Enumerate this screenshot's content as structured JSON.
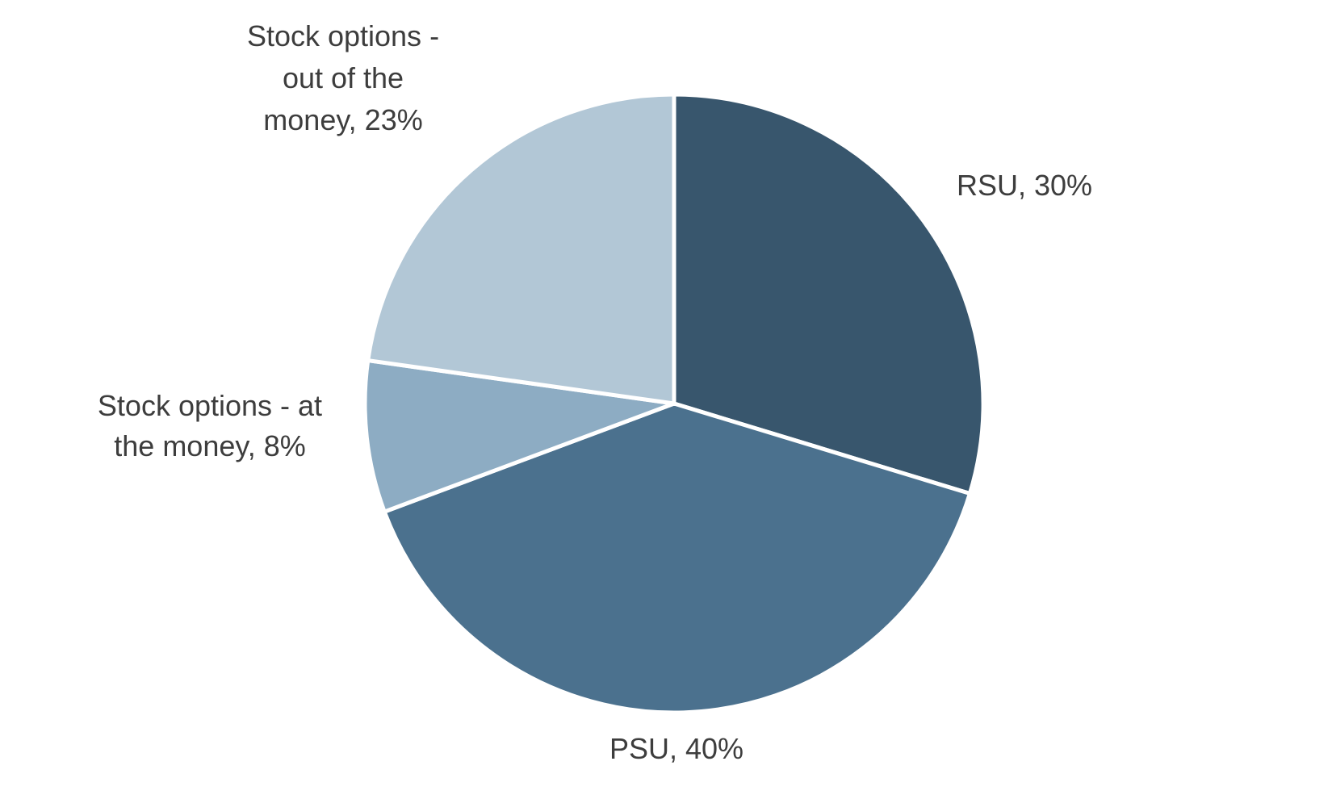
{
  "chart_data": {
    "type": "pie",
    "start_angle_deg": 0,
    "direction": "clockwise",
    "legend": "none",
    "slices": [
      {
        "label": "RSU, 30%",
        "value": 30,
        "color": "#38566d",
        "label_lines": [
          "RSU, 30%"
        ]
      },
      {
        "label": "PSU, 40%",
        "value": 40,
        "color": "#4b718e",
        "label_lines": [
          "PSU, 40%"
        ]
      },
      {
        "label": "Stock options - at the money, 8%",
        "value": 8,
        "color": "#8dacc3",
        "label_lines": [
          "Stock options - at",
          "the money, 8%"
        ]
      },
      {
        "label": "Stock options - out of the money, 23%",
        "value": 23,
        "color": "#b2c7d6",
        "label_lines": [
          "Stock options -",
          "out of the",
          "money, 23%"
        ]
      }
    ]
  }
}
